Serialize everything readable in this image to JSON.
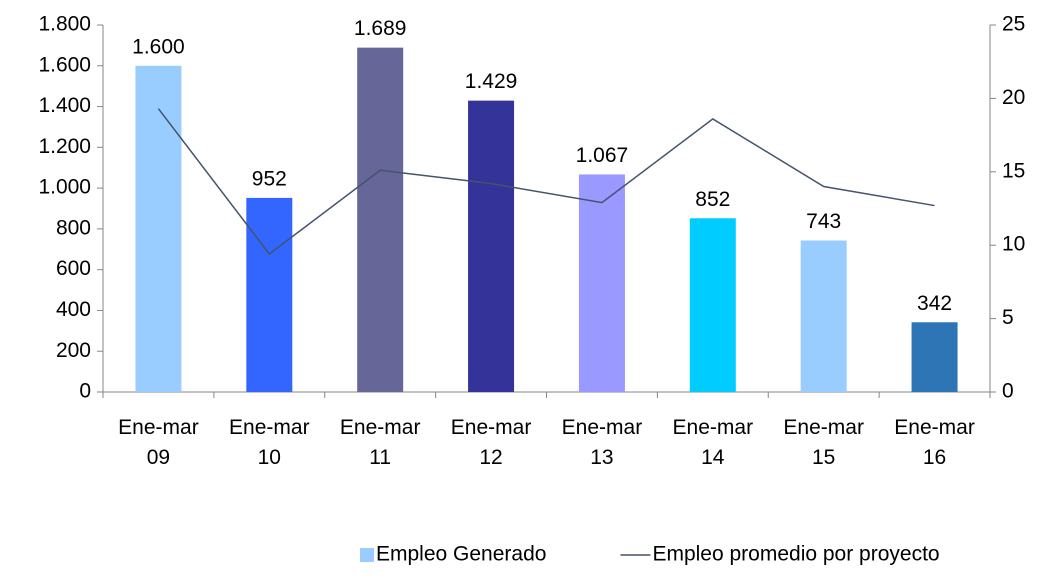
{
  "chart_data": {
    "type": "bar",
    "categories": [
      "Ene-mar 09",
      "Ene-mar 10",
      "Ene-mar 11",
      "Ene-mar 12",
      "Ene-mar 13",
      "Ene-mar 14",
      "Ene-mar 15",
      "Ene-mar 16"
    ],
    "series": [
      {
        "name": "Empleo Generado",
        "type": "bar",
        "color": "#99ccff",
        "colors": [
          "#99ccff",
          "#3366ff",
          "#666699",
          "#333399",
          "#9999ff",
          "#00ccff",
          "#99ccff",
          "#2e75b6"
        ],
        "values": [
          1600,
          952,
          1689,
          1429,
          1067,
          852,
          743,
          342
        ],
        "value_labels": [
          "1.600",
          "952",
          "1.689",
          "1.429",
          "1.067",
          "852",
          "743",
          "342"
        ]
      },
      {
        "name": "Empleo promedio por proyecto",
        "type": "line",
        "color": "#44546a",
        "axis": "y2",
        "values": [
          19.3,
          9.4,
          15.1,
          14.2,
          12.9,
          18.6,
          14.0,
          12.7
        ]
      }
    ],
    "ylim": [
      0,
      1800
    ],
    "yticks": [
      0,
      200,
      400,
      600,
      800,
      {
        "value": 1000,
        "label": "1.000"
      },
      {
        "value": 1200,
        "label": "1.200"
      },
      {
        "value": 1400,
        "label": "1.400"
      },
      {
        "value": 1600,
        "label": "1.600"
      },
      {
        "value": 1800,
        "label": "1.800"
      }
    ],
    "y2lim": [
      0,
      25
    ],
    "y2ticks": [
      0,
      5,
      10,
      15,
      20,
      25
    ],
    "legend": "bottom"
  }
}
